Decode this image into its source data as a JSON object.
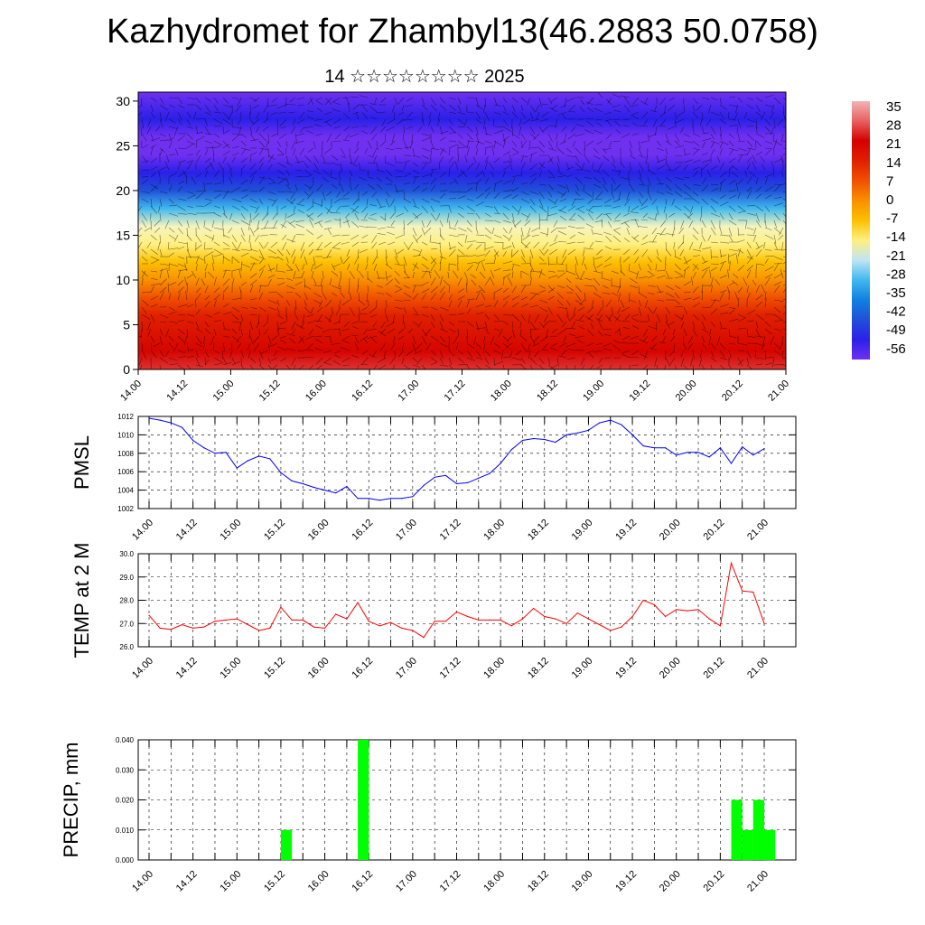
{
  "title": "Kazhydromet for Zhambyl13(46.2883 50.0758)",
  "subtitle": "14 ☆☆☆☆☆☆☆☆ 2025",
  "time_labels": [
    "14.00",
    "14.12",
    "15.00",
    "15.12",
    "16.00",
    "16.12",
    "17.00",
    "17.12",
    "18.00",
    "18.12",
    "19.00",
    "19.12",
    "20.00",
    "20.12",
    "21.00"
  ],
  "colorbar": {
    "labels": [
      "35",
      "28",
      "21",
      "14",
      "7",
      "0",
      "-7",
      "-14",
      "-21",
      "-28",
      "-35",
      "-42",
      "-49",
      "-56"
    ],
    "colors": [
      "#f2b3b3",
      "#e86060",
      "#d40000",
      "#e02000",
      "#f05000",
      "#f89000",
      "#fcc000",
      "#fff080",
      "#c0e4f5",
      "#40b8ee",
      "#1080e0",
      "#2050d8",
      "#2a20e8",
      "#7030f0"
    ]
  },
  "chart_data": [
    {
      "type": "heatmap",
      "title": "Kazhydromet for Zhambyl13(46.2883 50.0758)",
      "subtitle": "14 ☆☆☆☆☆☆☆☆ 2025",
      "y_ticks": [
        0,
        5,
        10,
        15,
        20,
        25,
        30
      ],
      "ylim": [
        0,
        31
      ],
      "x_ticks": [
        "14.00",
        "14.12",
        "15.00",
        "15.12",
        "16.00",
        "16.12",
        "17.00",
        "17.12",
        "18.00",
        "18.12",
        "19.00",
        "19.12",
        "20.00",
        "20.12",
        "21.00"
      ],
      "profile_levels": [
        0,
        2,
        4,
        6,
        8,
        10,
        12,
        14,
        16,
        18,
        20,
        22,
        24,
        26,
        28,
        31
      ],
      "profile_values": [
        30,
        27,
        24,
        21,
        14,
        7,
        0,
        -7,
        -14,
        -28,
        -42,
        -49,
        -56,
        -56,
        -49,
        -56
      ]
    },
    {
      "type": "line",
      "ylabel": "PMSL",
      "ylim": [
        1002,
        1012
      ],
      "y_ticks": [
        1002,
        1004,
        1006,
        1008,
        1010,
        1012
      ],
      "x_ticks": [
        "14.00",
        "14.12",
        "15.00",
        "15.12",
        "16.00",
        "16.12",
        "17.00",
        "17.12",
        "18.00",
        "18.12",
        "19.00",
        "19.12",
        "20.00",
        "20.12",
        "21.00"
      ],
      "x_hours": [
        0,
        3,
        6,
        9,
        12,
        15,
        18,
        21,
        24,
        27,
        30,
        33,
        36,
        39,
        42,
        45,
        48,
        51,
        54,
        57,
        60,
        63,
        66,
        69,
        72,
        75,
        78,
        81,
        84,
        87,
        90,
        93,
        96,
        99,
        102,
        105,
        108,
        111,
        114,
        117,
        120,
        123,
        126,
        129,
        132,
        135,
        138,
        141,
        144,
        147,
        150,
        153,
        156,
        159,
        162,
        165,
        168
      ],
      "values": [
        1011.8,
        1011.6,
        1011.3,
        1010.8,
        1009.4,
        1008.6,
        1008.0,
        1008.1,
        1006.4,
        1007.2,
        1007.7,
        1007.4,
        1005.9,
        1005.0,
        1004.7,
        1004.3,
        1004.0,
        1003.7,
        1004.4,
        1003.1,
        1003.1,
        1002.9,
        1003.1,
        1003.1,
        1003.3,
        1004.5,
        1005.4,
        1005.6,
        1004.7,
        1004.8,
        1005.3,
        1005.8,
        1006.9,
        1008.4,
        1009.4,
        1009.6,
        1009.5,
        1009.2,
        1010.0,
        1010.2,
        1010.5,
        1011.3,
        1011.6,
        1011.1,
        1010.0,
        1008.8,
        1008.6,
        1008.6,
        1007.8,
        1008.1,
        1008.1,
        1007.6,
        1008.6,
        1006.9,
        1008.7,
        1007.8,
        1008.5
      ],
      "color": "#0000ff"
    },
    {
      "type": "line",
      "ylabel": "TEMP at 2 M",
      "ylim": [
        26.0,
        30.0
      ],
      "y_ticks": [
        "26.0",
        "27.0",
        "28.0",
        "29.0",
        "30.0"
      ],
      "x_ticks": [
        "14.00",
        "14.12",
        "15.00",
        "15.12",
        "16.00",
        "16.12",
        "17.00",
        "17.12",
        "18.00",
        "18.12",
        "19.00",
        "19.12",
        "20.00",
        "20.12",
        "21.00"
      ],
      "x_hours": [
        0,
        3,
        6,
        9,
        12,
        15,
        18,
        21,
        24,
        27,
        30,
        33,
        36,
        39,
        42,
        45,
        48,
        51,
        54,
        57,
        60,
        63,
        66,
        69,
        72,
        75,
        78,
        81,
        84,
        87,
        90,
        93,
        96,
        99,
        102,
        105,
        108,
        111,
        114,
        117,
        120,
        123,
        126,
        129,
        132,
        135,
        138,
        141,
        144,
        147,
        150,
        153,
        156,
        159,
        162,
        165,
        168
      ],
      "values": [
        27.35,
        26.8,
        26.75,
        26.95,
        26.8,
        26.85,
        27.1,
        27.15,
        27.2,
        26.95,
        26.7,
        26.8,
        27.7,
        27.15,
        27.15,
        26.85,
        26.8,
        27.4,
        27.2,
        27.9,
        27.1,
        26.9,
        27.05,
        26.8,
        26.7,
        26.4,
        27.1,
        27.1,
        27.5,
        27.3,
        27.15,
        27.15,
        27.15,
        26.9,
        27.2,
        27.65,
        27.3,
        27.2,
        27.0,
        27.45,
        27.2,
        26.95,
        26.7,
        26.85,
        27.3,
        28.0,
        27.8,
        27.3,
        27.6,
        27.55,
        27.6,
        27.2,
        26.9,
        29.6,
        28.4,
        28.35,
        27.0
      ],
      "color": "#ff0000"
    },
    {
      "type": "bar",
      "ylabel": "PRECIP, mm",
      "ylim": [
        0,
        0.04
      ],
      "y_ticks": [
        "0.000",
        "0.010",
        "0.020",
        "0.030",
        "0.040"
      ],
      "x_ticks": [
        "14.00",
        "14.12",
        "15.00",
        "15.12",
        "16.00",
        "16.12",
        "17.00",
        "17.12",
        "18.00",
        "18.12",
        "19.00",
        "19.12",
        "20.00",
        "20.12",
        "21.00"
      ],
      "bars": [
        {
          "start_hour": 36,
          "end_hour": 39,
          "value": 0.01
        },
        {
          "start_hour": 57,
          "end_hour": 60,
          "value": 0.04
        },
        {
          "start_hour": 159,
          "end_hour": 162,
          "value": 0.02
        },
        {
          "start_hour": 162,
          "end_hour": 165,
          "value": 0.01
        },
        {
          "start_hour": 165,
          "end_hour": 168,
          "value": 0.02
        },
        {
          "start_hour": 168,
          "end_hour": 171,
          "value": 0.01
        }
      ],
      "color": "#00ff00"
    }
  ]
}
